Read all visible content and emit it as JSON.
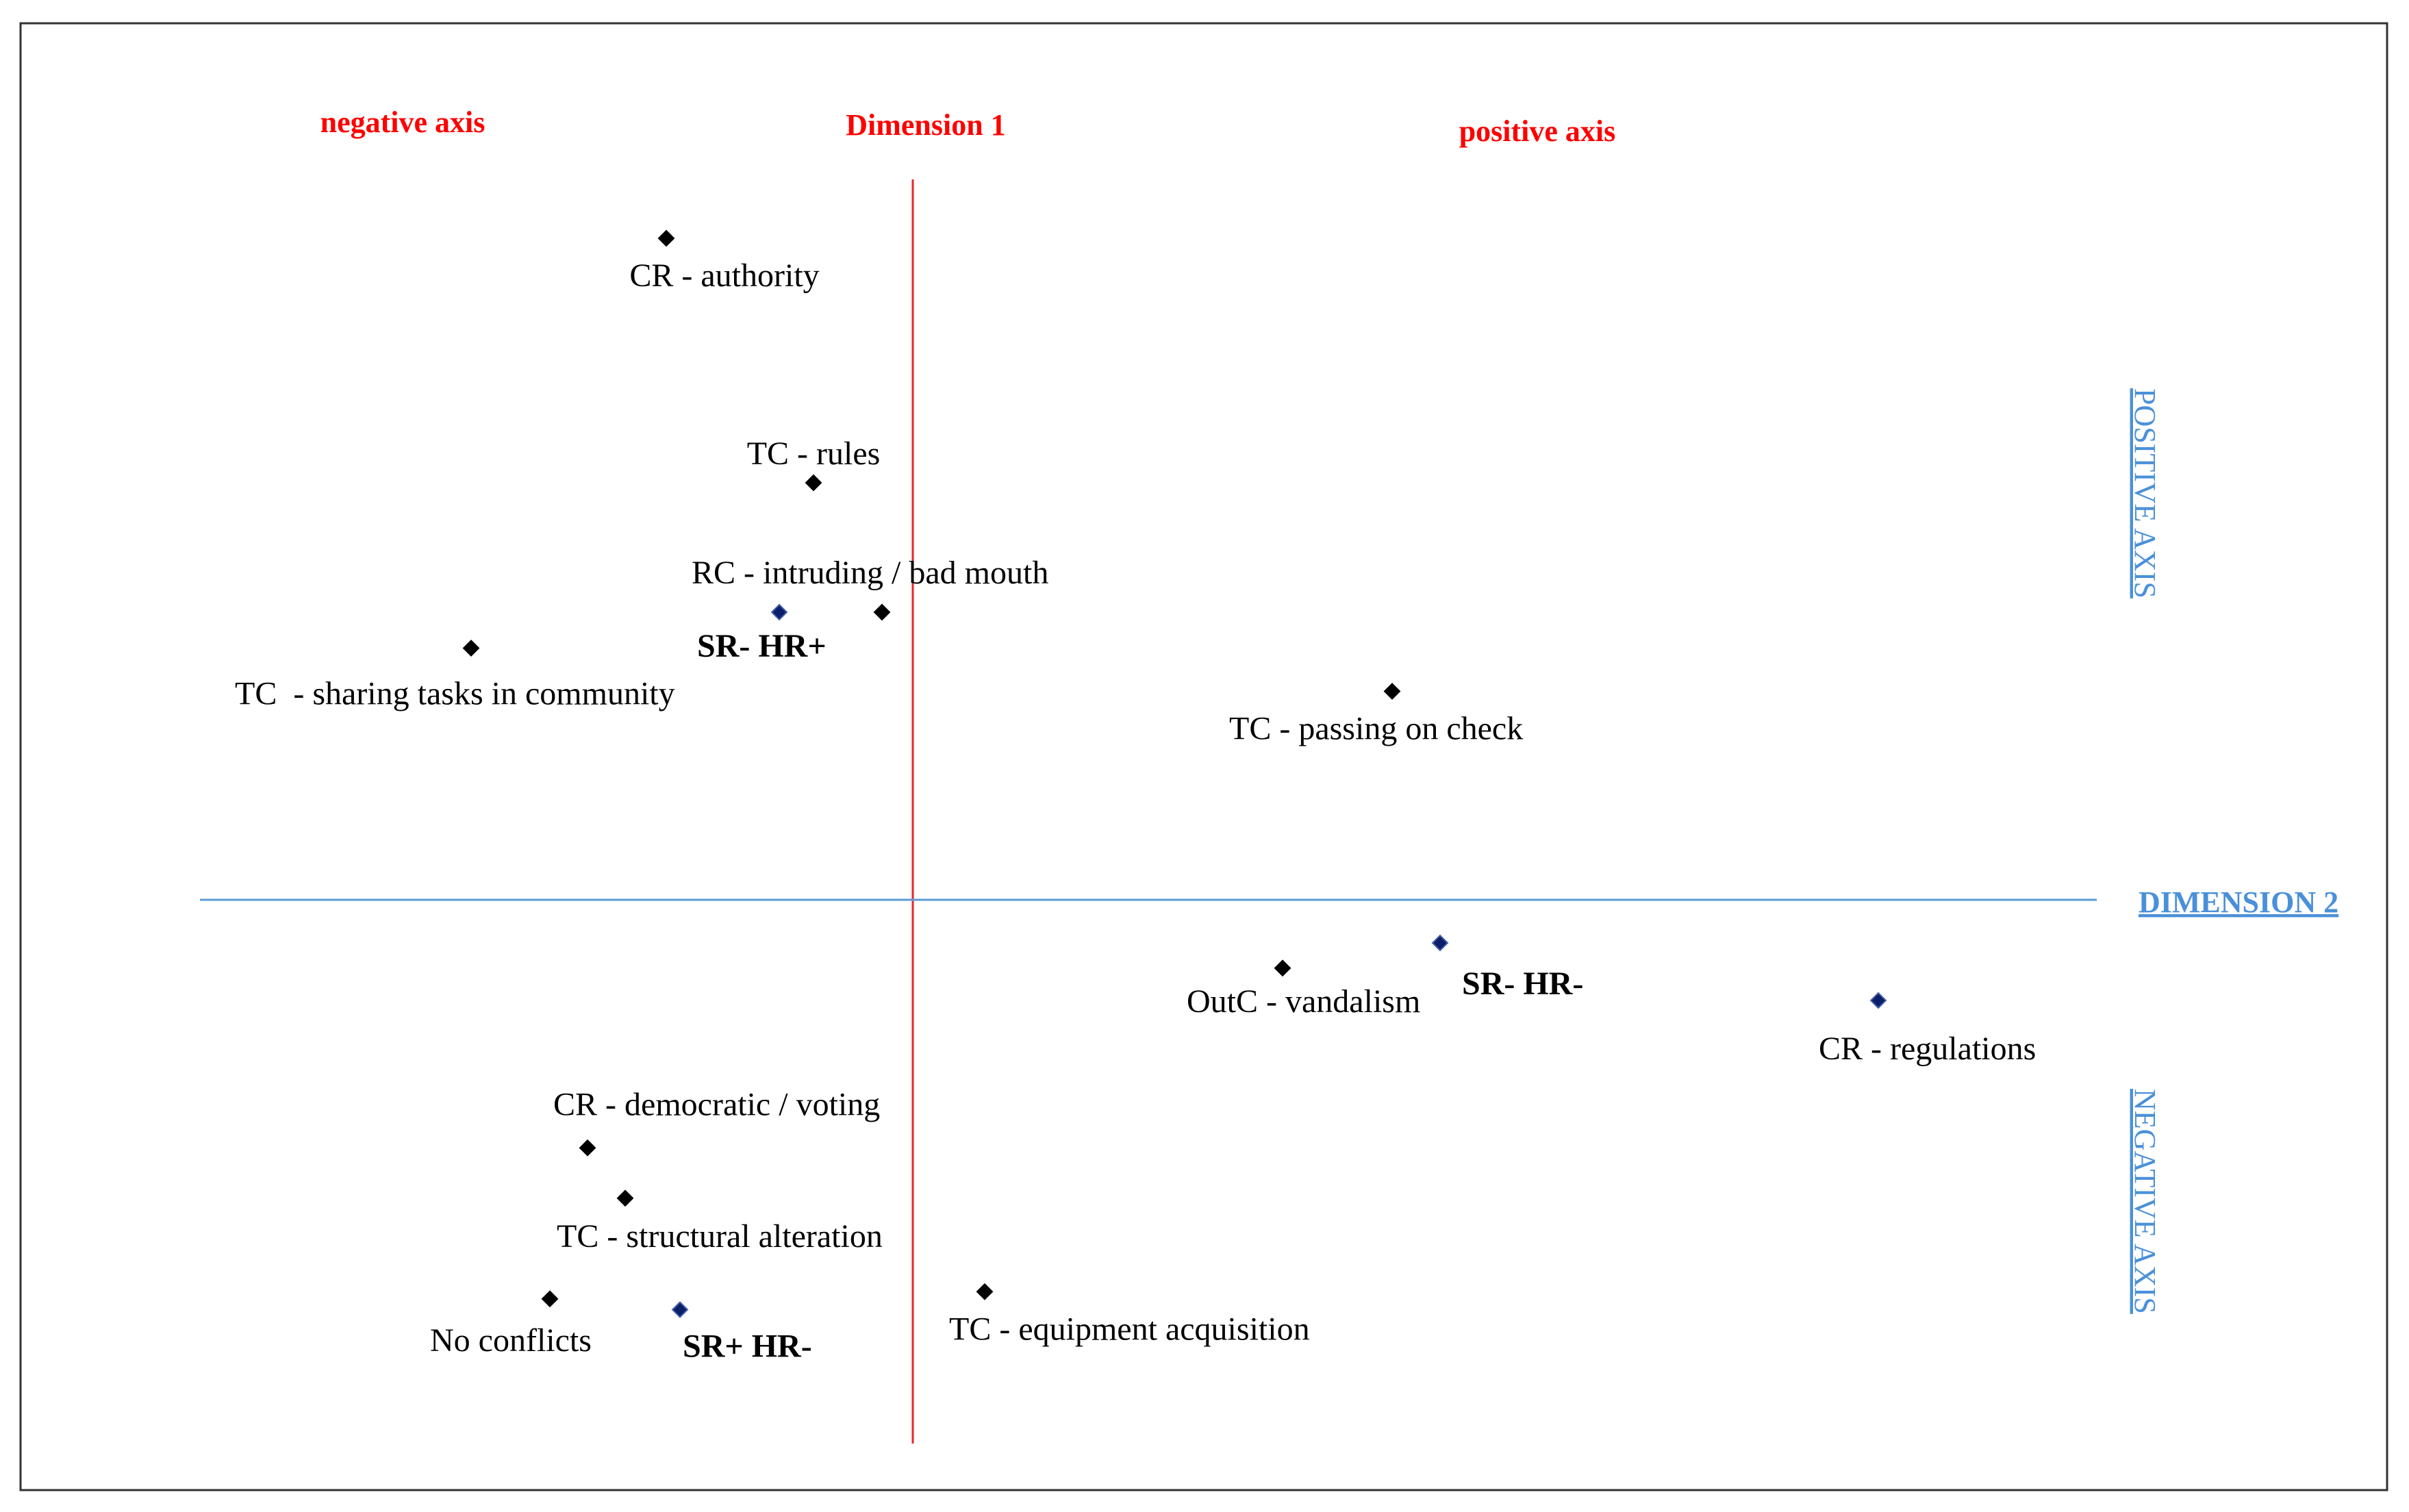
{
  "chart_data": {
    "type": "scatter",
    "title": "",
    "axes": {
      "dimension1_label": "Dimension 1",
      "dimension2_label": "DIMENSION 2",
      "negative_axis_label": "negative axis",
      "positive_axis_label": "positive axis",
      "positive_vertical_label": "POSITIVE AXIS",
      "negative_vertical_label": "NEGATIVE AXIS",
      "xlim": [
        -1.0,
        1.7
      ],
      "ylim": [
        -0.8,
        1.0
      ]
    },
    "colors": {
      "dimension1_line": "#e8262b",
      "dimension2_line": "#5b9bd5",
      "axis_text_red": "#ff0000",
      "axis_text_blue": "#4a90d9",
      "point_black": "#000000",
      "point_navy": "#0b1f6b"
    },
    "points": [
      {
        "label": "CR - authority",
        "x": -0.36,
        "y": 0.92,
        "color": "black",
        "bold": false
      },
      {
        "label": "TC - rules",
        "x": -0.145,
        "y": 0.58,
        "color": "black",
        "bold": false
      },
      {
        "label": "RC - intruding / bad mouth",
        "x": -0.045,
        "y": 0.4,
        "color": "black",
        "bold": false
      },
      {
        "label": "SR- HR+",
        "x": -0.195,
        "y": 0.4,
        "color": "navy",
        "bold": true
      },
      {
        "label": "TC  - sharing tasks in community",
        "x": -0.645,
        "y": 0.35,
        "color": "black",
        "bold": false
      },
      {
        "label": "TC - passing on check",
        "x": 0.7,
        "y": 0.29,
        "color": "black",
        "bold": false
      },
      {
        "label": "SR- HR-",
        "x": 0.77,
        "y": -0.06,
        "color": "navy",
        "bold": true
      },
      {
        "label": "OutC - vandalism",
        "x": 0.54,
        "y": -0.095,
        "color": "black",
        "bold": false
      },
      {
        "label": "CR - regulations",
        "x": 1.41,
        "y": -0.14,
        "color": "navy",
        "bold": false
      },
      {
        "label": "CR - democratic / voting",
        "x": -0.475,
        "y": -0.345,
        "color": "black",
        "bold": false
      },
      {
        "label": "TC - structural alteration",
        "x": -0.42,
        "y": -0.415,
        "color": "black",
        "bold": false
      },
      {
        "label": "No conflicts",
        "x": -0.53,
        "y": -0.555,
        "color": "black",
        "bold": false
      },
      {
        "label": "SR+ HR-",
        "x": -0.34,
        "y": -0.57,
        "color": "navy",
        "bold": true
      },
      {
        "label": "TC - equipment acquisition",
        "x": 0.105,
        "y": -0.545,
        "color": "black",
        "bold": false
      }
    ]
  }
}
